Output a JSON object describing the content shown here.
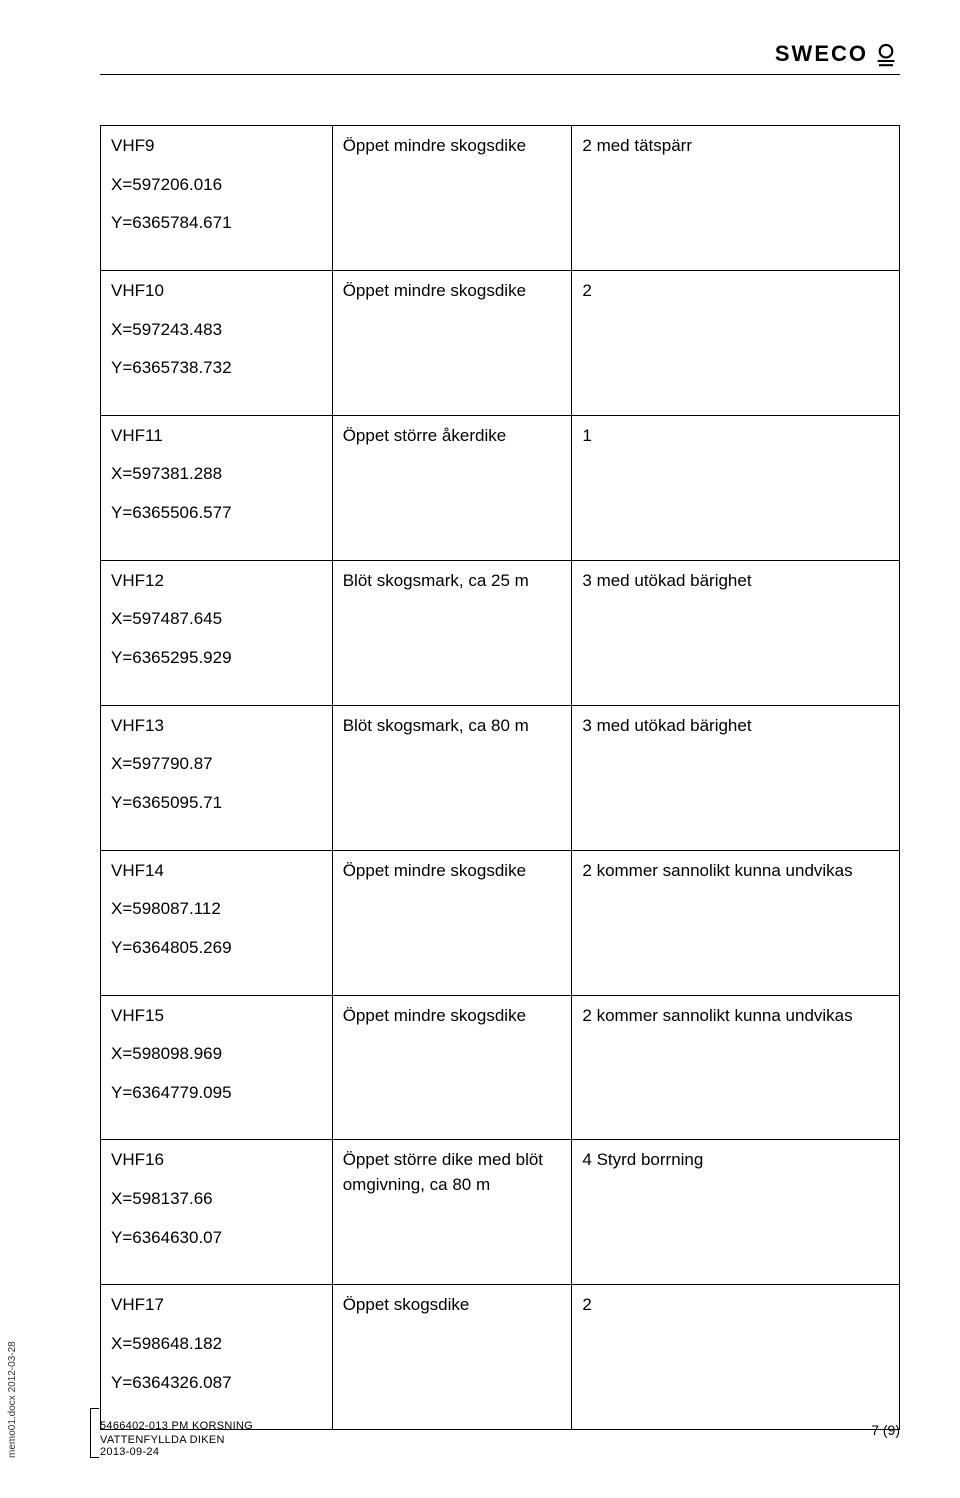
{
  "brand": {
    "name": "SWECO",
    "logo_stroke": "#000000",
    "logo_fill": "#ffffff"
  },
  "table": {
    "rows": [
      {
        "id": "VHF9",
        "x": "X=597206.016",
        "y": "Y=6365784.671",
        "desc": "Öppet mindre skogsdike",
        "note": "2 med tätspärr"
      },
      {
        "id": "VHF10",
        "x": "X=597243.483",
        "y": "Y=6365738.732",
        "desc": "Öppet mindre skogsdike",
        "note": "2"
      },
      {
        "id": "VHF11",
        "x": "X=597381.288",
        "y": "Y=6365506.577",
        "desc": "Öppet större åkerdike",
        "note": "1"
      },
      {
        "id": "VHF12",
        "x": "X=597487.645",
        "y": "Y=6365295.929",
        "desc": "Blöt skogsmark, ca 25 m",
        "note": "3 med utökad bärighet"
      },
      {
        "id": "VHF13",
        "x": "X=597790.87",
        "y": "Y=6365095.71",
        "desc": "Blöt skogsmark, ca 80 m",
        "note": "3 med utökad bärighet"
      },
      {
        "id": "VHF14",
        "x": "X=598087.112",
        "y": "Y=6364805.269",
        "desc": "Öppet mindre skogsdike",
        "note": "2 kommer sannolikt kunna undvikas"
      },
      {
        "id": "VHF15",
        "x": "X=598098.969",
        "y": "Y=6364779.095",
        "desc": "Öppet mindre skogsdike",
        "note": "2 kommer sannolikt kunna undvikas"
      },
      {
        "id": "VHF16",
        "x": "X=598137.66",
        "y": "Y=6364630.07",
        "desc": "Öppet större dike med blöt omgivning, ca 80 m",
        "note": "4 Styrd borrning"
      },
      {
        "id": "VHF17",
        "x": "X=598648.182",
        "y": "Y=6364326.087",
        "desc": "Öppet skogsdike",
        "note": "2"
      }
    ]
  },
  "footer": {
    "line1": "5466402-013 PM KORSNING",
    "line2": "VATTENFYLLDA DIKEN",
    "line3": "2013-09-24",
    "page": "7 (9)",
    "side": "memo01.docx 2012-03-28"
  }
}
